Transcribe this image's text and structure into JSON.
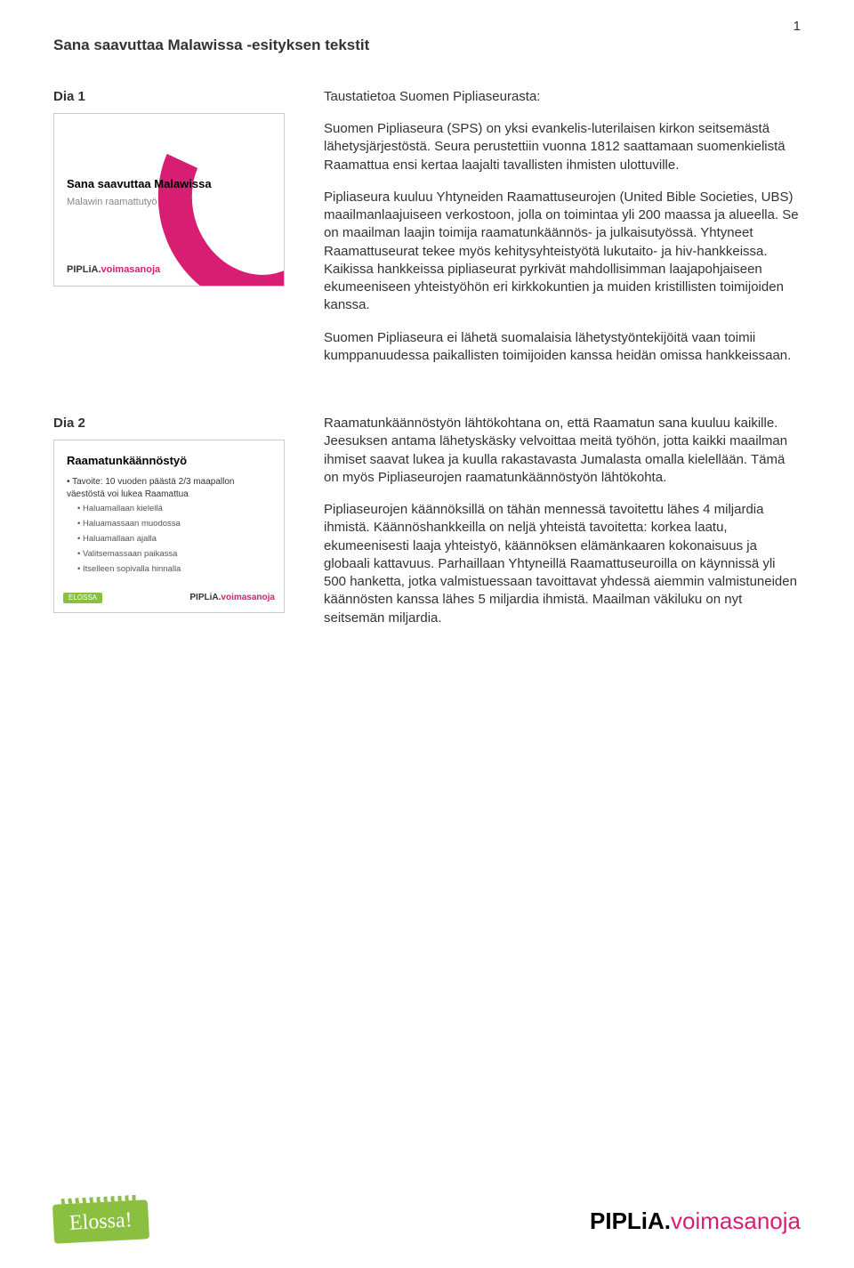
{
  "page_number": "1",
  "doc_title": "Sana saavuttaa Malawissa -esityksen tekstit",
  "slide1": {
    "label": "Dia 1",
    "thumb_title": "Sana saavuttaa Malawissa",
    "thumb_sub": "Malawin raamattutyö",
    "thumb_logo_a": "PIPLiA.",
    "thumb_logo_b": "voimasanoja",
    "heading": "Taustatietoa Suomen Pipliaseurasta:",
    "p1": "Suomen Pipliaseura (SPS) on yksi evankelis-luterilaisen kirkon seitsemästä lähetysjärjestöstä. Seura perustettiin vuonna 1812 saattamaan suomenkielistä Raamattua ensi kertaa laajalti tavallisten ihmisten ulottuville.",
    "p2": "Pipliaseura kuuluu Yhtyneiden Raamattuseurojen (United Bible Societies, UBS) maailmanlaajuiseen verkostoon, jolla on toimintaa yli 200 maassa ja alueella. Se on maailman laajin toimija raamatunkäännös- ja julkaisutyössä. Yhtyneet Raamattuseurat tekee myös kehitysyhteistyötä lukutaito- ja hiv-hankkeissa. Kaikissa hankkeissa pipliaseurat pyrkivät mahdollisimman laajapohjaiseen ekumeeniseen yhteistyöhön eri kirkkokuntien ja muiden kristillisten toimijoiden kanssa.",
    "p3": "Suomen Pipliaseura ei lähetä suomalaisia lähetystyöntekijöitä vaan toimii kumppanuudessa paikallisten toimijoiden kanssa heidän omissa hankkeissaan."
  },
  "slide2": {
    "label": "Dia 2",
    "thumb_title": "Raamatunkäännöstyö",
    "thumb_main": "• Tavoite: 10 vuoden päästä 2/3 maapallon väestöstä voi lukea Raamattua",
    "thumb_s1": "• Haluamallaan kielellä",
    "thumb_s2": "• Haluamassaan muodossa",
    "thumb_s3": "• Haluamallaan ajalla",
    "thumb_s4": "• Valitsemassaan paikassa",
    "thumb_s5": "• Itselleen sopivalla hinnalla",
    "thumb_badge": "ELOSSA",
    "thumb_logo_a": "PIPLiA.",
    "thumb_logo_b": "voimasanoja",
    "p1": "Raamatunkäännöstyön lähtökohtana on, että Raamatun sana kuuluu kaikille. Jeesuksen antama lähetyskäsky velvoittaa meitä työhön, jotta kaikki maailman ihmiset saavat lukea ja kuulla rakastavasta Jumalasta omalla kielellään. Tämä on myös Pipliaseurojen raamatunkäännöstyön lähtökohta.",
    "p2": "Pipliaseurojen käännöksillä on tähän mennessä tavoitettu lähes 4 miljardia ihmistä. Käännöshankkeilla on neljä yhteistä tavoitetta: korkea laatu, ekumeenisesti laaja yhteistyö, käännöksen elämänkaaren kokonaisuus ja globaali kattavuus. Parhaillaan Yhtyneillä Raamattuseuroilla on käynnissä yli 500 hanketta, jotka valmistuessaan tavoittavat yhdessä aiemmin valmistuneiden käännösten kanssa lähes 5 miljardia ihmistä. Maailman väkiluku on nyt seitsemän miljardia."
  },
  "footer": {
    "elossa": "Elossa!",
    "logo_a": "PIPLiA.",
    "logo_b": "voimasanoja"
  }
}
